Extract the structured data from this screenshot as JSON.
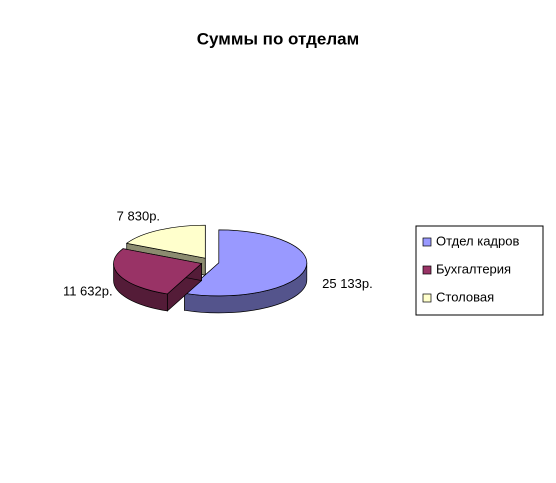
{
  "chart_data": {
    "type": "pie",
    "title": "Суммы по отделам",
    "categories": [
      "Отдел кадров",
      "Бухгалтерия",
      "Столовая"
    ],
    "values": [
      25133,
      11632,
      7830
    ],
    "value_labels": [
      "25 133р.",
      "11 632р.",
      "7 830р."
    ],
    "colors": [
      "#9999ff",
      "#993366",
      "#ffffcc"
    ],
    "legend": "right"
  }
}
